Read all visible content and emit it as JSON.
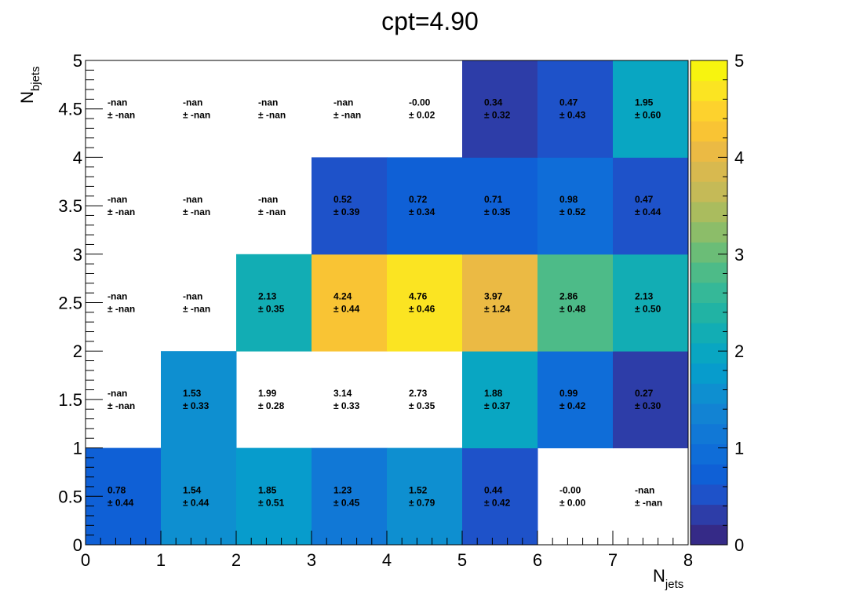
{
  "chart_data": {
    "type": "heatmap",
    "title": "cpt=4.90",
    "xlabel_main": "N",
    "xlabel_sub": "jets",
    "ylabel_main": "N",
    "ylabel_sub": "bjets",
    "xlim": [
      0,
      8
    ],
    "ylim": [
      0,
      5
    ],
    "zlim": [
      0,
      5
    ],
    "x_ticks": [
      "0",
      "1",
      "2",
      "3",
      "4",
      "5",
      "6",
      "7",
      "8"
    ],
    "y_ticks": [
      "0",
      "0.5",
      "1",
      "1.5",
      "2",
      "2.5",
      "3",
      "3.5",
      "4",
      "4.5",
      "5"
    ],
    "z_ticks": [
      "0",
      "1",
      "2",
      "3",
      "4",
      "5"
    ],
    "palette": [
      "#352a87",
      "#2d3da8",
      "#1e52c9",
      "#0f60d6",
      "#0f6dd8",
      "#1178d6",
      "#1283d3",
      "#0e8fd0",
      "#079ccc",
      "#09a6c2",
      "#12adb4",
      "#21b3a4",
      "#35b898",
      "#4dbb88",
      "#6bbd77",
      "#8cbd69",
      "#aabc5e",
      "#c5ba57",
      "#d8b94f",
      "#ebba44",
      "#f9c434",
      "#fdd22d",
      "#fbe422",
      "#f7f40f"
    ],
    "cells": [
      {
        "x": 0,
        "y": 0,
        "value": 0.78,
        "label": "0.78",
        "error": "± 0.44"
      },
      {
        "x": 1,
        "y": 0,
        "value": 1.54,
        "label": "1.54",
        "error": "± 0.44"
      },
      {
        "x": 2,
        "y": 0,
        "value": 1.85,
        "label": "1.85",
        "error": "± 0.51"
      },
      {
        "x": 3,
        "y": 0,
        "value": 1.23,
        "label": "1.23",
        "error": "± 0.45"
      },
      {
        "x": 4,
        "y": 0,
        "value": 1.52,
        "label": "1.52",
        "error": "± 0.79"
      },
      {
        "x": 5,
        "y": 0,
        "value": 0.44,
        "label": "0.44",
        "error": "± 0.42"
      },
      {
        "x": 6,
        "y": 0,
        "value": null,
        "label": "-0.00",
        "error": "± 0.00"
      },
      {
        "x": 7,
        "y": 0,
        "value": null,
        "label": "-nan",
        "error": "± -nan"
      },
      {
        "x": 0,
        "y": 1,
        "value": null,
        "label": "-nan",
        "error": "± -nan"
      },
      {
        "x": 1,
        "y": 1,
        "value": 1.53,
        "label": "1.53",
        "error": "± 0.33"
      },
      {
        "x": 2,
        "y": 1,
        "value": null,
        "label": "1.99",
        "error": "± 0.28"
      },
      {
        "x": 3,
        "y": 1,
        "value": null,
        "label": "3.14",
        "error": "± 0.33"
      },
      {
        "x": 4,
        "y": 1,
        "value": null,
        "label": "2.73",
        "error": "± 0.35"
      },
      {
        "x": 5,
        "y": 1,
        "value": 1.88,
        "label": "1.88",
        "error": "± 0.37"
      },
      {
        "x": 6,
        "y": 1,
        "value": 0.99,
        "label": "0.99",
        "error": "± 0.42"
      },
      {
        "x": 7,
        "y": 1,
        "value": 0.27,
        "label": "0.27",
        "error": "± 0.30"
      },
      {
        "x": 0,
        "y": 2,
        "value": null,
        "label": "-nan",
        "error": "± -nan"
      },
      {
        "x": 1,
        "y": 2,
        "value": null,
        "label": "-nan",
        "error": "± -nan"
      },
      {
        "x": 2,
        "y": 2,
        "value": 2.13,
        "label": "2.13",
        "error": "± 0.35"
      },
      {
        "x": 3,
        "y": 2,
        "value": 4.24,
        "label": "4.24",
        "error": "± 0.44"
      },
      {
        "x": 4,
        "y": 2,
        "value": 4.76,
        "label": "4.76",
        "error": "± 0.46"
      },
      {
        "x": 5,
        "y": 2,
        "value": 3.97,
        "label": "3.97",
        "error": "± 1.24"
      },
      {
        "x": 6,
        "y": 2,
        "value": 2.86,
        "label": "2.86",
        "error": "± 0.48"
      },
      {
        "x": 7,
        "y": 2,
        "value": 2.13,
        "label": "2.13",
        "error": "± 0.50"
      },
      {
        "x": 0,
        "y": 3,
        "value": null,
        "label": "-nan",
        "error": "± -nan"
      },
      {
        "x": 1,
        "y": 3,
        "value": null,
        "label": "-nan",
        "error": "± -nan"
      },
      {
        "x": 2,
        "y": 3,
        "value": null,
        "label": "-nan",
        "error": "± -nan"
      },
      {
        "x": 3,
        "y": 3,
        "value": 0.52,
        "label": "0.52",
        "error": "± 0.39"
      },
      {
        "x": 4,
        "y": 3,
        "value": 0.72,
        "label": "0.72",
        "error": "± 0.34"
      },
      {
        "x": 5,
        "y": 3,
        "value": 0.71,
        "label": "0.71",
        "error": "± 0.35"
      },
      {
        "x": 6,
        "y": 3,
        "value": 0.98,
        "label": "0.98",
        "error": "± 0.52"
      },
      {
        "x": 7,
        "y": 3,
        "value": 0.47,
        "label": "0.47",
        "error": "± 0.44"
      },
      {
        "x": 0,
        "y": 4,
        "value": null,
        "label": "-nan",
        "error": "± -nan"
      },
      {
        "x": 1,
        "y": 4,
        "value": null,
        "label": "-nan",
        "error": "± -nan"
      },
      {
        "x": 2,
        "y": 4,
        "value": null,
        "label": "-nan",
        "error": "± -nan"
      },
      {
        "x": 3,
        "y": 4,
        "value": null,
        "label": "-nan",
        "error": "± -nan"
      },
      {
        "x": 4,
        "y": 4,
        "value": null,
        "label": "-0.00",
        "error": "± 0.02"
      },
      {
        "x": 5,
        "y": 4,
        "value": 0.34,
        "label": "0.34",
        "error": "± 0.32"
      },
      {
        "x": 6,
        "y": 4,
        "value": 0.47,
        "label": "0.47",
        "error": "± 0.43"
      },
      {
        "x": 7,
        "y": 4,
        "value": 1.95,
        "label": "1.95",
        "error": "± 0.60"
      }
    ]
  }
}
